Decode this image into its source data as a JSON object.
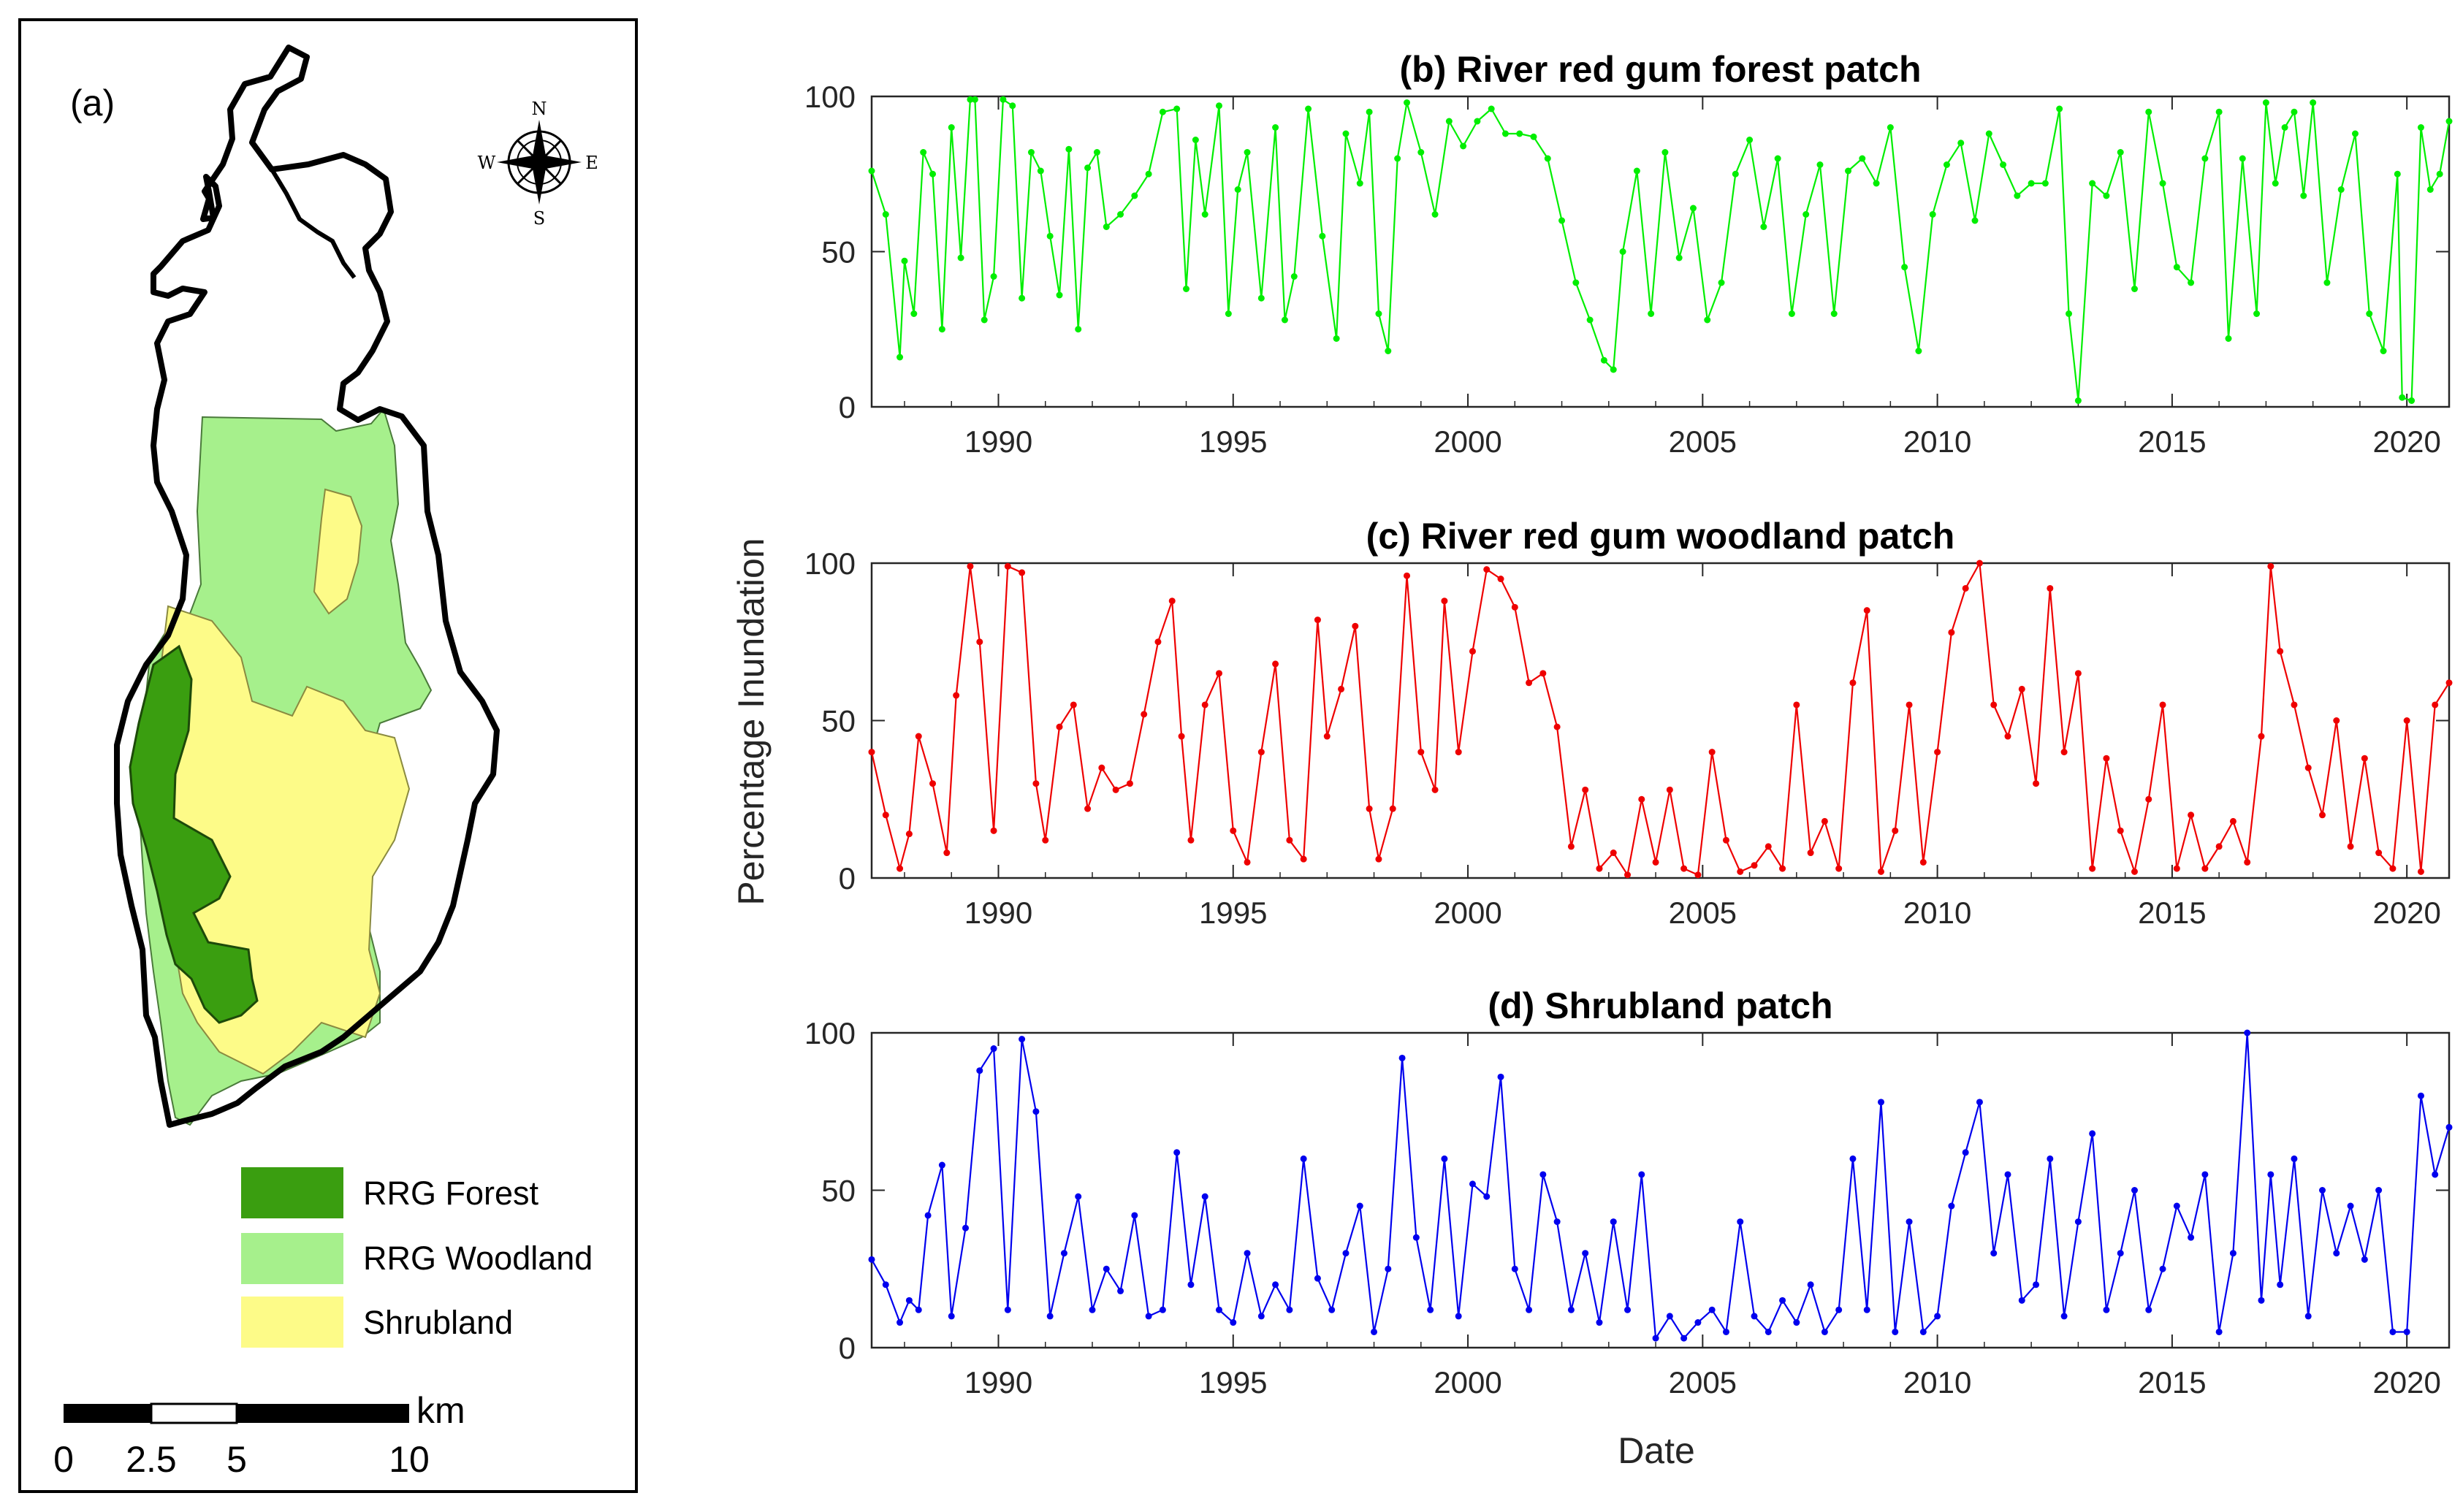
{
  "map_panel": {
    "label": "(a)",
    "compass": {
      "n": "N",
      "s": "S",
      "e": "E",
      "w": "W"
    },
    "legend": [
      {
        "label": "RRG Forest",
        "color": "#3a9e10"
      },
      {
        "label": "RRG Woodland",
        "color": "#a6f08c"
      },
      {
        "label": "Shrubland",
        "color": "#fdfb88"
      }
    ],
    "scale_bar": {
      "unit": "km",
      "labels": [
        "0",
        "2.5",
        "5",
        "10"
      ]
    }
  },
  "shared": {
    "ylabel": "Percentage Inundation",
    "xlabel": "Date",
    "xticks": [
      "1990",
      "1995",
      "2000",
      "2005",
      "2010",
      "2015",
      "2020"
    ],
    "yticks": [
      "0",
      "50",
      "100"
    ]
  },
  "chart_data": [
    {
      "type": "line",
      "title": "(b) River red gum forest patch",
      "color": "#00ee00",
      "xlim": [
        1987.3,
        2020.9
      ],
      "ylim": [
        0,
        100
      ],
      "x": [
        1987.3,
        1987.6,
        1987.9,
        1988.0,
        1988.2,
        1988.4,
        1988.6,
        1988.8,
        1989.0,
        1989.2,
        1989.4,
        1989.5,
        1989.7,
        1989.9,
        1990.1,
        1990.3,
        1990.5,
        1990.7,
        1990.9,
        1991.1,
        1991.3,
        1991.5,
        1991.7,
        1991.9,
        1992.1,
        1992.3,
        1992.6,
        1992.9,
        1993.2,
        1993.5,
        1993.8,
        1994.0,
        1994.2,
        1994.4,
        1994.7,
        1994.9,
        1995.1,
        1995.3,
        1995.6,
        1995.9,
        1996.1,
        1996.3,
        1996.6,
        1996.9,
        1997.2,
        1997.4,
        1997.7,
        1997.9,
        1998.1,
        1998.3,
        1998.5,
        1998.7,
        1999.0,
        1999.3,
        1999.6,
        1999.9,
        2000.2,
        2000.5,
        2000.8,
        2001.1,
        2001.4,
        2001.7,
        2002.0,
        2002.3,
        2002.6,
        2002.9,
        2003.1,
        2003.3,
        2003.6,
        2003.9,
        2004.2,
        2004.5,
        2004.8,
        2005.1,
        2005.4,
        2005.7,
        2006.0,
        2006.3,
        2006.6,
        2006.9,
        2007.2,
        2007.5,
        2007.8,
        2008.1,
        2008.4,
        2008.7,
        2009.0,
        2009.3,
        2009.6,
        2009.9,
        2010.2,
        2010.5,
        2010.8,
        2011.1,
        2011.4,
        2011.7,
        2012.0,
        2012.3,
        2012.6,
        2012.8,
        2013.0,
        2013.3,
        2013.6,
        2013.9,
        2014.2,
        2014.5,
        2014.8,
        2015.1,
        2015.4,
        2015.7,
        2016.0,
        2016.2,
        2016.5,
        2016.8,
        2017.0,
        2017.2,
        2017.4,
        2017.6,
        2017.8,
        2018.0,
        2018.3,
        2018.6,
        2018.9,
        2019.2,
        2019.5,
        2019.8,
        2019.9,
        2020.1,
        2020.3,
        2020.5,
        2020.7,
        2020.9
      ],
      "y": [
        76,
        62,
        16,
        47,
        30,
        82,
        75,
        25,
        90,
        48,
        99,
        99,
        28,
        42,
        99,
        97,
        35,
        82,
        76,
        55,
        36,
        83,
        25,
        77,
        82,
        58,
        62,
        68,
        75,
        95,
        96,
        38,
        86,
        62,
        97,
        30,
        70,
        82,
        35,
        90,
        28,
        42,
        96,
        55,
        22,
        88,
        72,
        95,
        30,
        18,
        80,
        98,
        82,
        62,
        92,
        84,
        92,
        96,
        88,
        88,
        87,
        80,
        60,
        40,
        28,
        15,
        12,
        50,
        76,
        30,
        82,
        48,
        64,
        28,
        40,
        75,
        86,
        58,
        80,
        30,
        62,
        78,
        30,
        76,
        80,
        72,
        90,
        45,
        18,
        62,
        78,
        85,
        60,
        88,
        78,
        68,
        72,
        72,
        96,
        30,
        2,
        72,
        68,
        82,
        38,
        95,
        72,
        45,
        40,
        80,
        95,
        22,
        80,
        30,
        98,
        72,
        90,
        95,
        68,
        98,
        40,
        70,
        88,
        30,
        18,
        75,
        3,
        2,
        90,
        70,
        75,
        92
      ],
      "xlabel": "",
      "ylabel": ""
    },
    {
      "type": "line",
      "title": "(c) River red gum woodland patch",
      "color": "#ee0000",
      "xlim": [
        1987.3,
        2020.9
      ],
      "ylim": [
        0,
        100
      ],
      "x": [
        1987.3,
        1987.6,
        1987.9,
        1988.1,
        1988.3,
        1988.6,
        1988.9,
        1989.1,
        1989.4,
        1989.6,
        1989.9,
        1990.2,
        1990.5,
        1990.8,
        1991.0,
        1991.3,
        1991.6,
        1991.9,
        1992.2,
        1992.5,
        1992.8,
        1993.1,
        1993.4,
        1993.7,
        1993.9,
        1994.1,
        1994.4,
        1994.7,
        1995.0,
        1995.3,
        1995.6,
        1995.9,
        1996.2,
        1996.5,
        1996.8,
        1997.0,
        1997.3,
        1997.6,
        1997.9,
        1998.1,
        1998.4,
        1998.7,
        1999.0,
        1999.3,
        1999.5,
        1999.8,
        2000.1,
        2000.4,
        2000.7,
        2001.0,
        2001.3,
        2001.6,
        2001.9,
        2002.2,
        2002.5,
        2002.8,
        2003.1,
        2003.4,
        2003.7,
        2004.0,
        2004.3,
        2004.6,
        2004.9,
        2005.2,
        2005.5,
        2005.8,
        2006.1,
        2006.4,
        2006.7,
        2007.0,
        2007.3,
        2007.6,
        2007.9,
        2008.2,
        2008.5,
        2008.8,
        2009.1,
        2009.4,
        2009.7,
        2010.0,
        2010.3,
        2010.6,
        2010.9,
        2011.2,
        2011.5,
        2011.8,
        2012.1,
        2012.4,
        2012.7,
        2013.0,
        2013.3,
        2013.6,
        2013.9,
        2014.2,
        2014.5,
        2014.8,
        2015.1,
        2015.4,
        2015.7,
        2016.0,
        2016.3,
        2016.6,
        2016.9,
        2017.1,
        2017.3,
        2017.6,
        2017.9,
        2018.2,
        2018.5,
        2018.8,
        2019.1,
        2019.4,
        2019.7,
        2020.0,
        2020.3,
        2020.6,
        2020.9
      ],
      "y": [
        40,
        20,
        3,
        14,
        45,
        30,
        8,
        58,
        99,
        75,
        15,
        99,
        97,
        30,
        12,
        48,
        55,
        22,
        35,
        28,
        30,
        52,
        75,
        88,
        45,
        12,
        55,
        65,
        15,
        5,
        40,
        68,
        12,
        6,
        82,
        45,
        60,
        80,
        22,
        6,
        22,
        96,
        40,
        28,
        88,
        40,
        72,
        98,
        95,
        86,
        62,
        65,
        48,
        10,
        28,
        3,
        8,
        1,
        25,
        5,
        28,
        3,
        1,
        40,
        12,
        2,
        4,
        10,
        3,
        55,
        8,
        18,
        3,
        62,
        85,
        2,
        15,
        55,
        5,
        40,
        78,
        92,
        100,
        55,
        45,
        60,
        30,
        92,
        40,
        65,
        3,
        38,
        15,
        2,
        25,
        55,
        3,
        20,
        3,
        10,
        18,
        5,
        45,
        99,
        72,
        55,
        35,
        20,
        50,
        10,
        38,
        8,
        3,
        50,
        2,
        55,
        62
      ],
      "xlabel": "",
      "ylabel": ""
    },
    {
      "type": "line",
      "title": "(d) Shrubland patch",
      "color": "#0000ee",
      "xlim": [
        1987.3,
        2020.9
      ],
      "ylim": [
        0,
        100
      ],
      "x": [
        1987.3,
        1987.6,
        1987.9,
        1988.1,
        1988.3,
        1988.5,
        1988.8,
        1989.0,
        1989.3,
        1989.6,
        1989.9,
        1990.2,
        1990.5,
        1990.8,
        1991.1,
        1991.4,
        1991.7,
        1992.0,
        1992.3,
        1992.6,
        1992.9,
        1993.2,
        1993.5,
        1993.8,
        1994.1,
        1994.4,
        1994.7,
        1995.0,
        1995.3,
        1995.6,
        1995.9,
        1996.2,
        1996.5,
        1996.8,
        1997.1,
        1997.4,
        1997.7,
        1998.0,
        1998.3,
        1998.6,
        1998.9,
        1999.2,
        1999.5,
        1999.8,
        2000.1,
        2000.4,
        2000.7,
        2001.0,
        2001.3,
        2001.6,
        2001.9,
        2002.2,
        2002.5,
        2002.8,
        2003.1,
        2003.4,
        2003.7,
        2004.0,
        2004.3,
        2004.6,
        2004.9,
        2005.2,
        2005.5,
        2005.8,
        2006.1,
        2006.4,
        2006.7,
        2007.0,
        2007.3,
        2007.6,
        2007.9,
        2008.2,
        2008.5,
        2008.8,
        2009.1,
        2009.4,
        2009.7,
        2010.0,
        2010.3,
        2010.6,
        2010.9,
        2011.2,
        2011.5,
        2011.8,
        2012.1,
        2012.4,
        2012.7,
        2013.0,
        2013.3,
        2013.6,
        2013.9,
        2014.2,
        2014.5,
        2014.8,
        2015.1,
        2015.4,
        2015.7,
        2016.0,
        2016.3,
        2016.6,
        2016.9,
        2017.1,
        2017.3,
        2017.6,
        2017.9,
        2018.2,
        2018.5,
        2018.8,
        2019.1,
        2019.4,
        2019.7,
        2020.0,
        2020.3,
        2020.6,
        2020.9
      ],
      "y": [
        28,
        20,
        8,
        15,
        12,
        42,
        58,
        10,
        38,
        88,
        95,
        12,
        98,
        75,
        10,
        30,
        48,
        12,
        25,
        18,
        42,
        10,
        12,
        62,
        20,
        48,
        12,
        8,
        30,
        10,
        20,
        12,
        60,
        22,
        12,
        30,
        45,
        5,
        25,
        92,
        35,
        12,
        60,
        10,
        52,
        48,
        86,
        25,
        12,
        55,
        40,
        12,
        30,
        8,
        40,
        12,
        55,
        3,
        10,
        3,
        8,
        12,
        5,
        40,
        10,
        5,
        15,
        8,
        20,
        5,
        12,
        60,
        12,
        78,
        5,
        40,
        5,
        10,
        45,
        62,
        78,
        30,
        55,
        15,
        20,
        60,
        10,
        40,
        68,
        12,
        30,
        50,
        12,
        25,
        45,
        35,
        55,
        5,
        30,
        100,
        15,
        55,
        20,
        60,
        10,
        50,
        30,
        45,
        28,
        50,
        5,
        5,
        80,
        55,
        70
      ],
      "xlabel": "",
      "ylabel": ""
    }
  ]
}
